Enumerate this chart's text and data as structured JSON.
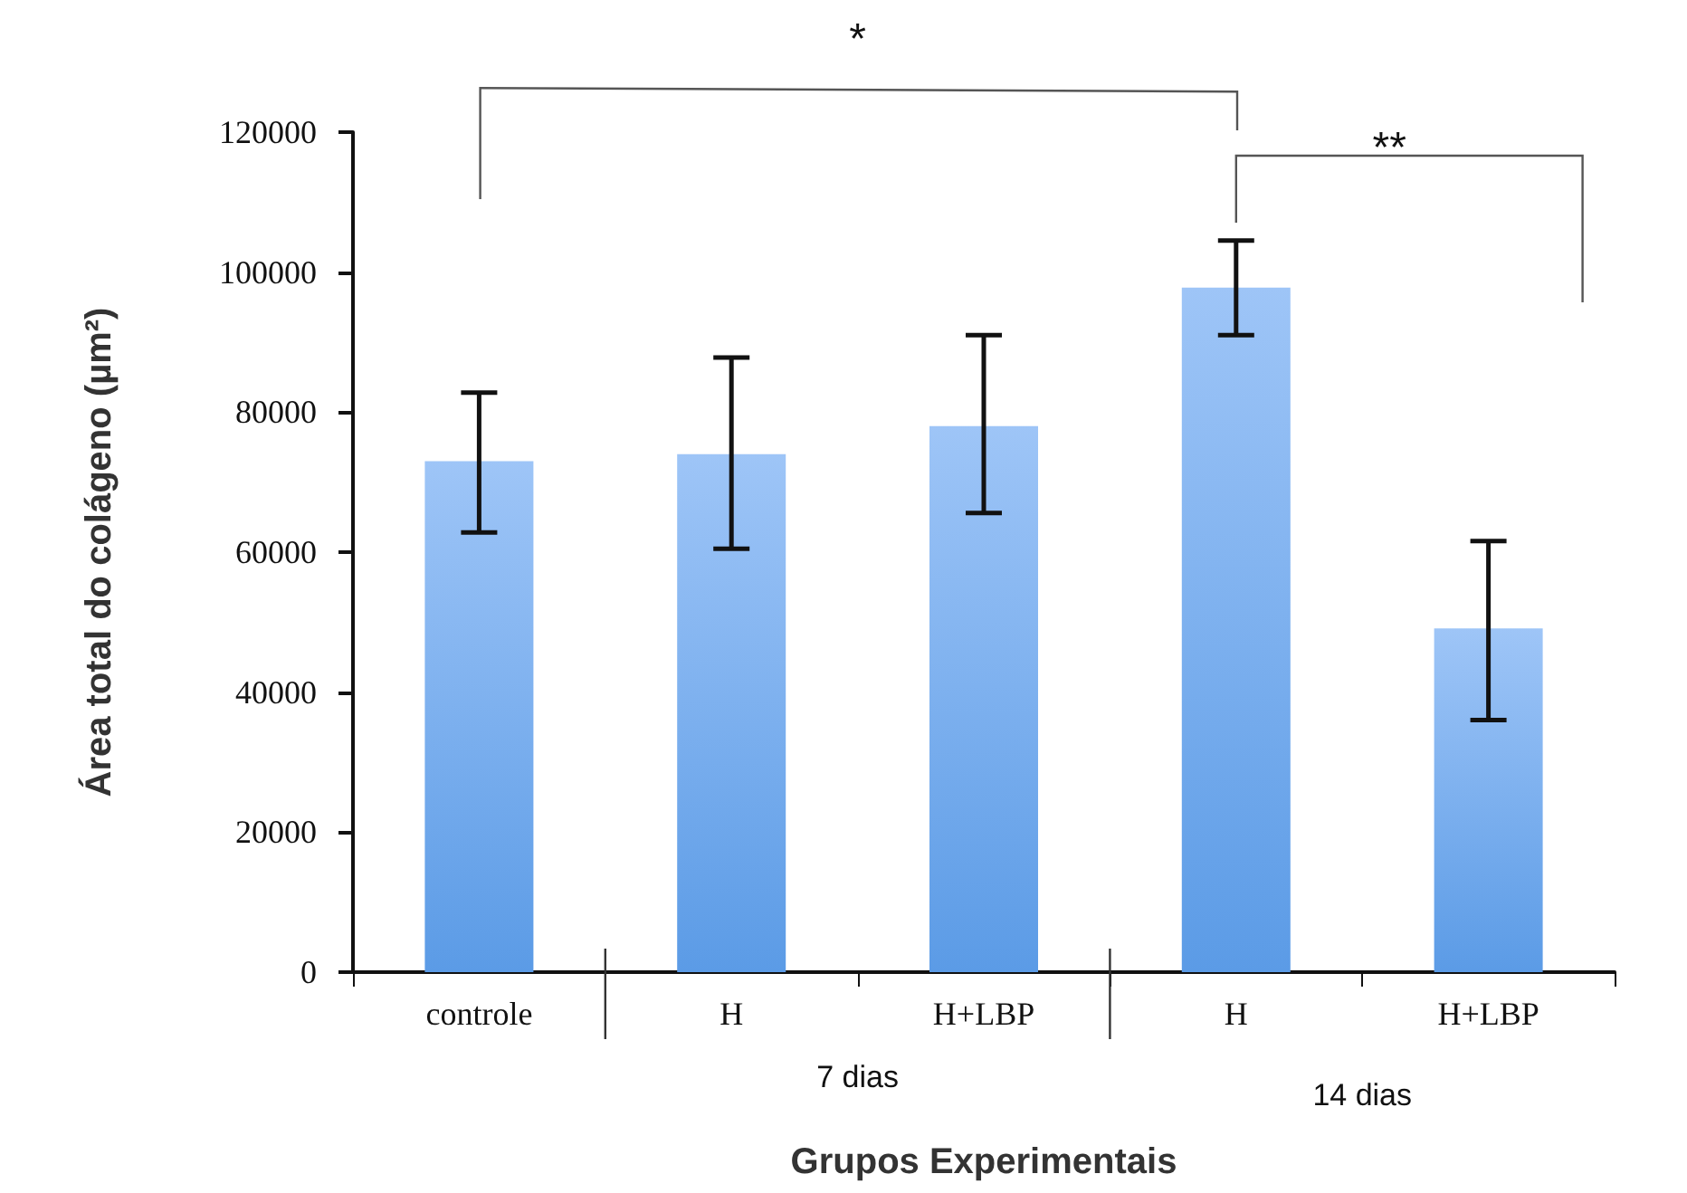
{
  "chart_data": {
    "type": "bar",
    "xlabel": "Grupos Experimentais",
    "ylabel": "Área total do colágeno (µm²)",
    "categories": [
      "controle",
      "H",
      "H+LBP",
      "H",
      "H+LBP"
    ],
    "values": [
      73000,
      74000,
      78000,
      97800,
      49100
    ],
    "errors": [
      [
        62800,
        82800
      ],
      [
        60500,
        87800
      ],
      [
        65600,
        91000
      ],
      [
        91000,
        104500
      ],
      [
        36000,
        61600
      ]
    ],
    "color": "#5b9be6",
    "ylim": [
      0,
      120000
    ],
    "yticks": [
      0,
      20000,
      40000,
      60000,
      80000,
      100000,
      120000
    ],
    "annotations": [
      "*",
      "**",
      "7 dias",
      "14 dias"
    ]
  }
}
